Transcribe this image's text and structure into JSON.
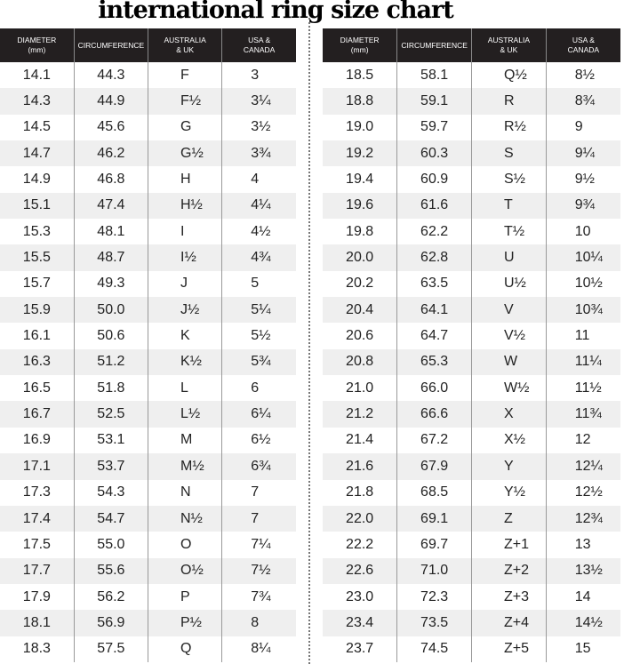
{
  "title": "international ring size chart",
  "headers": [
    "DIAMETER\n(mm)",
    "CIRCUMFERENCE",
    "AUSTRALIA\n& UK",
    "USA &\nCANADA"
  ],
  "left_rows": [
    [
      "14.1",
      "44.3",
      "F",
      "3"
    ],
    [
      "14.3",
      "44.9",
      "F½",
      "3¼"
    ],
    [
      "14.5",
      "45.6",
      "G",
      "3½"
    ],
    [
      "14.7",
      "46.2",
      "G½",
      "3¾"
    ],
    [
      "14.9",
      "46.8",
      "H",
      "4"
    ],
    [
      "15.1",
      "47.4",
      "H½",
      "4¼"
    ],
    [
      "15.3",
      "48.1",
      "I",
      "4½"
    ],
    [
      "15.5",
      "48.7",
      "I½",
      "4¾"
    ],
    [
      "15.7",
      "49.3",
      "J",
      "5"
    ],
    [
      "15.9",
      "50.0",
      "J½",
      "5¼"
    ],
    [
      "16.1",
      "50.6",
      "K",
      "5½"
    ],
    [
      "16.3",
      "51.2",
      "K½",
      "5¾"
    ],
    [
      "16.5",
      "51.8",
      "L",
      "6"
    ],
    [
      "16.7",
      "52.5",
      "L½",
      "6¼"
    ],
    [
      "16.9",
      "53.1",
      "M",
      "6½"
    ],
    [
      "17.1",
      "53.7",
      "M½",
      "6¾"
    ],
    [
      "17.3",
      "54.3",
      "N",
      "7"
    ],
    [
      "17.4",
      "54.7",
      "N½",
      "7"
    ],
    [
      "17.5",
      "55.0",
      "O",
      "7¼"
    ],
    [
      "17.7",
      "55.6",
      "O½",
      "7½"
    ],
    [
      "17.9",
      "56.2",
      "P",
      "7¾"
    ],
    [
      "18.1",
      "56.9",
      "P½",
      "8"
    ],
    [
      "18.3",
      "57.5",
      "Q",
      "8¼"
    ]
  ],
  "right_rows": [
    [
      "18.5",
      "58.1",
      "Q½",
      "8½"
    ],
    [
      "18.8",
      "59.1",
      "R",
      "8¾"
    ],
    [
      "19.0",
      "59.7",
      "R½",
      "9"
    ],
    [
      "19.2",
      "60.3",
      "S",
      "9¼"
    ],
    [
      "19.4",
      "60.9",
      "S½",
      "9½"
    ],
    [
      "19.6",
      "61.6",
      "T",
      "9¾"
    ],
    [
      "19.8",
      "62.2",
      "T½",
      "10"
    ],
    [
      "20.0",
      "62.8",
      "U",
      "10¼"
    ],
    [
      "20.2",
      "63.5",
      "U½",
      "10½"
    ],
    [
      "20.4",
      "64.1",
      "V",
      "10¾"
    ],
    [
      "20.6",
      "64.7",
      "V½",
      "11"
    ],
    [
      "20.8",
      "65.3",
      "W",
      "11¼"
    ],
    [
      "21.0",
      "66.0",
      "W½",
      "11½"
    ],
    [
      "21.2",
      "66.6",
      "X",
      "11¾"
    ],
    [
      "21.4",
      "67.2",
      "X½",
      "12"
    ],
    [
      "21.6",
      "67.9",
      "Y",
      "12¼"
    ],
    [
      "21.8",
      "68.5",
      "Y½",
      "12½"
    ],
    [
      "22.0",
      "69.1",
      "Z",
      "12¾"
    ],
    [
      "22.2",
      "69.7",
      "Z+1",
      "13"
    ],
    [
      "22.6",
      "71.0",
      "Z+2",
      "13½"
    ],
    [
      "23.0",
      "72.3",
      "Z+3",
      "14"
    ],
    [
      "23.4",
      "73.5",
      "Z+4",
      "14½"
    ],
    [
      "23.7",
      "74.5",
      "Z+5",
      "15"
    ]
  ],
  "colors": {
    "header_bg": "#231f20",
    "alt_row": "#efefef"
  }
}
